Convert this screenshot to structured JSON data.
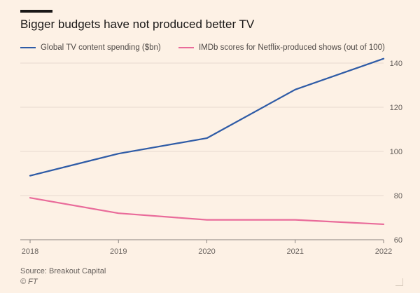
{
  "header": {
    "title": "Bigger budgets have not produced better TV"
  },
  "legend": {
    "items": [
      {
        "label": "Global TV content spending ($bn)",
        "color": "#2e5ba6"
      },
      {
        "label": "IMDb scores for Netflix-produced shows (out of 100)",
        "color": "#e96b9a"
      }
    ]
  },
  "footer": {
    "source": "Source: Breakout Capital",
    "credit": "© FT"
  },
  "chart_data": {
    "type": "line",
    "title": "Bigger budgets have not produced better TV",
    "xlabel": "",
    "ylabel": "",
    "x": [
      2018,
      2019,
      2020,
      2021,
      2022
    ],
    "ylim": [
      60,
      140
    ],
    "yticks": [
      60,
      80,
      100,
      120,
      140
    ],
    "grid": true,
    "series": [
      {
        "name": "Global TV content spending ($bn)",
        "color": "#2e5ba6",
        "values": [
          89,
          99,
          106,
          128,
          142
        ]
      },
      {
        "name": "IMDb scores for Netflix-produced shows (out of 100)",
        "color": "#e96b9a",
        "values": [
          79,
          72,
          69,
          69,
          67
        ]
      }
    ]
  }
}
